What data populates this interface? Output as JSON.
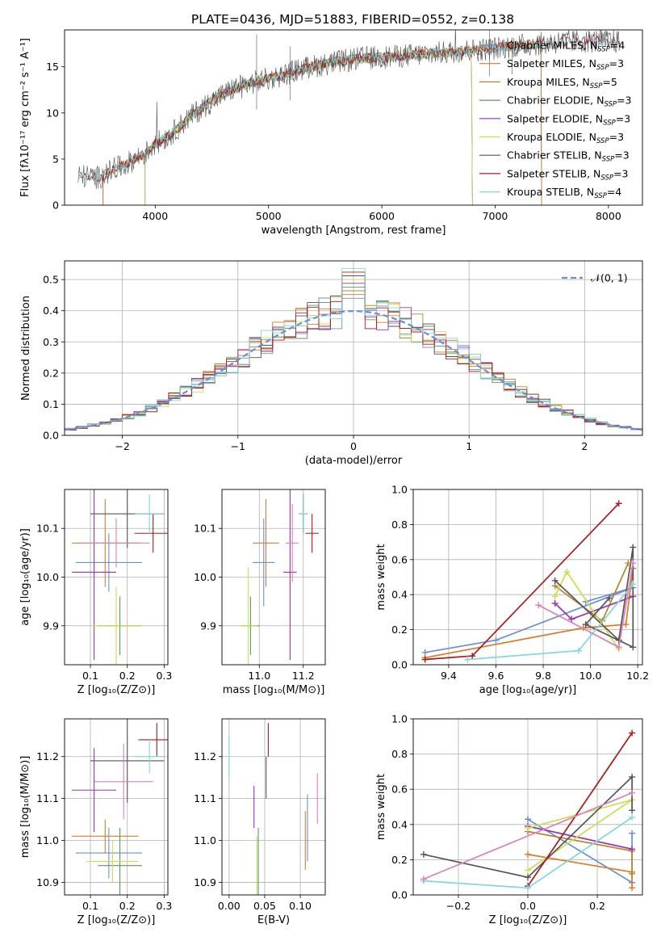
{
  "colors": {
    "chabrier_miles": "#6a8fd8",
    "salpeter_miles": "#e07a28",
    "kroupa_miles": "#b8862c",
    "chabrier_elodie": "#5a9a5a",
    "salpeter_elodie": "#a030b0",
    "kroupa_elodie": "#c8e050",
    "chabrier_stelib": "#555555",
    "salpeter_stelib": "#b01818",
    "kroupa_stelib": "#80d8e0",
    "extra_pink": "#e080b8",
    "grid": "#b0b0b0"
  },
  "chart_data": [
    {
      "id": "spectrum",
      "type": "line",
      "title": "PLATE=0436, MJD=51883, FIBERID=0552, z=0.138",
      "xlabel": "wavelength [Angstrom, rest frame]",
      "ylabel": "Flux [fλ10⁻¹⁷ erg cm⁻² s⁻¹ A⁻¹]",
      "xlim": [
        3200,
        8300
      ],
      "ylim": [
        0,
        19
      ],
      "xticks": [
        4000,
        5000,
        6000,
        7000,
        8000
      ],
      "yticks": [
        0,
        5,
        10,
        15
      ],
      "grid": false,
      "legend_position": "top-right",
      "legend": [
        "Chabrier MILES, N_SSP=4",
        "Salpeter MILES, N_SSP=3",
        "Kroupa MILES, N_SSP=5",
        "Chabrier ELODIE, N_SSP=3",
        "Salpeter ELODIE, N_SSP=3",
        "Kroupa ELODIE, N_SSP=3",
        "Chabrier STELIB, N_SSP=3",
        "Salpeter STELIB, N_SSP=3",
        "Kroupa STELIB, N_SSP=4"
      ],
      "continuum": [
        [
          3320,
          3.2
        ],
        [
          3500,
          3.0
        ],
        [
          3700,
          4.2
        ],
        [
          3900,
          5.5
        ],
        [
          4000,
          6.6
        ],
        [
          4150,
          7.8
        ],
        [
          4300,
          9.5
        ],
        [
          4500,
          11.3
        ],
        [
          4700,
          12.7
        ],
        [
          4900,
          13.4
        ],
        [
          5100,
          14.0
        ],
        [
          5300,
          14.8
        ],
        [
          5500,
          15.3
        ],
        [
          5800,
          15.9
        ],
        [
          6100,
          16.1
        ],
        [
          6400,
          16.4
        ],
        [
          6700,
          16.7
        ],
        [
          7000,
          17.0
        ],
        [
          7300,
          17.4
        ],
        [
          7600,
          17.7
        ],
        [
          7900,
          17.8
        ],
        [
          8100,
          17.7
        ]
      ]
    },
    {
      "id": "residuals",
      "type": "step",
      "xlabel": "(data-model)/error",
      "ylabel": "Normed distribution",
      "xlim": [
        -2.5,
        2.5
      ],
      "ylim": [
        0,
        0.56
      ],
      "xticks": [
        -2,
        -1,
        0,
        1,
        2
      ],
      "yticks": [
        0.0,
        0.1,
        0.2,
        0.3,
        0.4,
        0.5
      ],
      "grid": true,
      "legend_position": "top-right",
      "legend": [
        "𝒩(0, 1)"
      ],
      "bin_width": 0.1
    },
    {
      "id": "age_vs_z",
      "type": "errorbar",
      "xlabel": "Z [log₁₀(Z/Z⊙)]",
      "ylabel": "age  [log₁₀(age/yr)]",
      "xlim": [
        0.03,
        0.31
      ],
      "ylim": [
        9.82,
        10.18
      ],
      "xticks": [
        0.1,
        0.2,
        0.3
      ],
      "yticks": [
        9.9,
        10.0,
        10.1
      ],
      "grid": true,
      "points": [
        {
          "c": "chabrier_miles",
          "x": 0.15,
          "y": 10.03,
          "xerr": 0.09,
          "yerr": 0.06
        },
        {
          "c": "salpeter_miles",
          "x": 0.14,
          "y": 10.07,
          "xerr": 0.09,
          "yerr": 0.09
        },
        {
          "c": "chabrier_elodie",
          "x": 0.18,
          "y": 9.9,
          "xerr": 0.06,
          "yerr": 0.06
        },
        {
          "c": "salpeter_elodie",
          "x": 0.11,
          "y": 10.01,
          "xerr": 0.06,
          "yerr": 0.18
        },
        {
          "c": "kroupa_elodie",
          "x": 0.17,
          "y": 9.9,
          "xerr": 0.07,
          "yerr": 0.08
        },
        {
          "c": "chabrier_stelib",
          "x": 0.2,
          "y": 10.13,
          "xerr": 0.1,
          "yerr": 0.07
        },
        {
          "c": "salpeter_stelib",
          "x": 0.27,
          "y": 10.09,
          "xerr": 0.05,
          "yerr": 0.04
        },
        {
          "c": "kroupa_stelib",
          "x": 0.26,
          "y": 10.13,
          "xerr": 0.04,
          "yerr": 0.04
        },
        {
          "c": "extra_pink",
          "x": 0.17,
          "y": 10.07,
          "xerr": 0.09,
          "yerr": 0.05
        }
      ]
    },
    {
      "id": "age_vs_mass",
      "type": "errorbar",
      "xlabel": "mass [log₁₀(M/M⊙)]",
      "ylabel": "",
      "xlim": [
        10.83,
        11.3
      ],
      "ylim": [
        9.82,
        10.18
      ],
      "xticks": [
        11.0,
        11.2
      ],
      "yticks": [
        9.9,
        10.0,
        10.1
      ],
      "grid": true,
      "points": [
        {
          "c": "chabrier_miles",
          "x": 11.02,
          "y": 10.03,
          "xerr": 0.05,
          "yerr": 0.09
        },
        {
          "c": "salpeter_miles",
          "x": 11.03,
          "y": 10.07,
          "xerr": 0.06,
          "yerr": 0.09
        },
        {
          "c": "chabrier_elodie",
          "x": 10.96,
          "y": 9.9,
          "xerr": 0.04,
          "yerr": 0.06
        },
        {
          "c": "salpeter_elodie",
          "x": 11.14,
          "y": 10.01,
          "xerr": 0.03,
          "yerr": 0.18
        },
        {
          "c": "kroupa_elodie",
          "x": 10.95,
          "y": 9.9,
          "xerr": 0.04,
          "yerr": 0.12
        },
        {
          "c": "chabrier_stelib",
          "x": 11.2,
          "y": 10.13,
          "xerr": 0.02,
          "yerr": 0.04
        },
        {
          "c": "salpeter_stelib",
          "x": 11.24,
          "y": 10.09,
          "xerr": 0.03,
          "yerr": 0.04
        },
        {
          "c": "kroupa_stelib",
          "x": 11.2,
          "y": 10.13,
          "xerr": 0.02,
          "yerr": 0.04
        },
        {
          "c": "extra_pink",
          "x": 11.15,
          "y": 10.07,
          "xerr": 0.03,
          "yerr": 0.08
        }
      ]
    },
    {
      "id": "weight_vs_age",
      "type": "line",
      "xlabel": "age  [log₁₀(age/yr)]",
      "ylabel": "mass weight",
      "xlim": [
        9.25,
        10.22
      ],
      "ylim": [
        0,
        1.0
      ],
      "xticks": [
        9.4,
        9.6,
        9.8,
        10.0,
        10.2
      ],
      "yticks": [
        0.0,
        0.2,
        0.4,
        0.6,
        0.8,
        1.0
      ],
      "grid": true,
      "series": [
        {
          "c": "chabrier_miles",
          "points": [
            [
              9.3,
              0.07
            ],
            [
              9.6,
              0.14
            ],
            [
              10.18,
              0.44
            ],
            [
              9.98,
              0.36
            ]
          ]
        },
        {
          "c": "salpeter_miles",
          "points": [
            [
              9.3,
              0.04
            ],
            [
              9.97,
              0.21
            ],
            [
              10.15,
              0.23
            ],
            [
              10.18,
              0.55
            ]
          ]
        },
        {
          "c": "kroupa_miles",
          "points": [
            [
              9.85,
              0.45
            ],
            [
              10.05,
              0.25
            ],
            [
              10.16,
              0.58
            ]
          ]
        },
        {
          "c": "salpeter_elodie",
          "points": [
            [
              9.85,
              0.35
            ],
            [
              9.92,
              0.26
            ],
            [
              10.18,
              0.39
            ]
          ]
        },
        {
          "c": "kroupa_elodie",
          "points": [
            [
              9.85,
              0.39
            ],
            [
              9.9,
              0.53
            ],
            [
              10.12,
              0.09
            ]
          ]
        },
        {
          "c": "chabrier_stelib",
          "points": [
            [
              9.85,
              0.48
            ],
            [
              10.12,
              0.14
            ],
            [
              10.18,
              0.67
            ],
            [
              10.18,
              0.1
            ],
            [
              9.98,
              0.23
            ],
            [
              10.08,
              0.38
            ]
          ]
        },
        {
          "c": "salpeter_stelib",
          "points": [
            [
              9.3,
              0.03
            ],
            [
              9.5,
              0.05
            ],
            [
              10.12,
              0.92
            ]
          ]
        },
        {
          "c": "kroupa_stelib",
          "points": [
            [
              9.48,
              0.03
            ],
            [
              9.95,
              0.08
            ],
            [
              10.18,
              0.46
            ]
          ]
        },
        {
          "c": "extra_pink",
          "points": [
            [
              9.78,
              0.34
            ],
            [
              10.12,
              0.1
            ],
            [
              10.18,
              0.58
            ]
          ]
        }
      ]
    },
    {
      "id": "mass_vs_z",
      "type": "errorbar",
      "xlabel": "Z [log₁₀(Z/Z⊙)]",
      "ylabel": "mass [log₁₀(M/M⊙)]",
      "xlim": [
        0.03,
        0.31
      ],
      "ylim": [
        10.87,
        11.29
      ],
      "xticks": [
        0.1,
        0.2,
        0.3
      ],
      "yticks": [
        10.9,
        11.0,
        11.1,
        11.2
      ],
      "grid": true,
      "points": [
        {
          "c": "chabrier_miles",
          "x": 0.15,
          "y": 10.97,
          "xerr": 0.09,
          "yerr": 0.06
        },
        {
          "c": "salpeter_miles",
          "x": 0.14,
          "y": 11.01,
          "xerr": 0.09,
          "yerr": 0.04
        },
        {
          "c": "chabrier_elodie",
          "x": 0.18,
          "y": 10.94,
          "xerr": 0.06,
          "yerr": 0.09
        },
        {
          "c": "salpeter_elodie",
          "x": 0.11,
          "y": 11.12,
          "xerr": 0.06,
          "yerr": 0.1
        },
        {
          "c": "kroupa_elodie",
          "x": 0.16,
          "y": 10.95,
          "xerr": 0.07,
          "yerr": 0.05
        },
        {
          "c": "chabrier_stelib",
          "x": 0.2,
          "y": 11.19,
          "xerr": 0.1,
          "yerr": 0.1
        },
        {
          "c": "salpeter_stelib",
          "x": 0.28,
          "y": 11.24,
          "xerr": 0.05,
          "yerr": 0.04
        },
        {
          "c": "kroupa_stelib",
          "x": 0.26,
          "y": 11.2,
          "xerr": 0.04,
          "yerr": 0.04
        },
        {
          "c": "extra_pink",
          "x": 0.19,
          "y": 11.14,
          "xerr": 0.08,
          "yerr": 0.09
        }
      ]
    },
    {
      "id": "mass_vs_ebv",
      "type": "errorbar",
      "xlabel": "E(B-V)",
      "ylabel": "",
      "xlim": [
        -0.01,
        0.135
      ],
      "ylim": [
        10.87,
        11.29
      ],
      "xticks": [
        0.0,
        0.05,
        0.1
      ],
      "xticklabels": [
        "0.00",
        "0.05",
        "0.10"
      ],
      "yticks": [
        10.9,
        11.0,
        11.1,
        11.2
      ],
      "grid": true,
      "points": [
        {
          "c": "chabrier_miles",
          "x": 0.11,
          "y": 11.03,
          "xerr": 0,
          "yerr": 0.08
        },
        {
          "c": "salpeter_miles",
          "x": 0.107,
          "y": 11.0,
          "xerr": 0,
          "yerr": 0.07
        },
        {
          "c": "chabrier_elodie",
          "x": 0.041,
          "y": 10.94,
          "xerr": 0,
          "yerr": 0.09
        },
        {
          "c": "salpeter_elodie",
          "x": 0.035,
          "y": 11.08,
          "xerr": 0,
          "yerr": 0.05
        },
        {
          "c": "kroupa_elodie",
          "x": 0.039,
          "y": 10.94,
          "xerr": 0,
          "yerr": 0.07
        },
        {
          "c": "chabrier_stelib",
          "x": 0.052,
          "y": 11.15,
          "xerr": 0,
          "yerr": 0.05
        },
        {
          "c": "salpeter_stelib",
          "x": 0.055,
          "y": 11.24,
          "xerr": 0,
          "yerr": 0.04
        },
        {
          "c": "kroupa_stelib",
          "x": 0.0,
          "y": 11.2,
          "xerr": 0,
          "yerr": 0.05
        },
        {
          "c": "extra_pink",
          "x": 0.124,
          "y": 11.1,
          "xerr": 0,
          "yerr": 0.06
        }
      ]
    },
    {
      "id": "weight_vs_z",
      "type": "line",
      "xlabel": "Z [log₁₀(Z/Z⊙)]",
      "ylabel": "mass weight",
      "xlim": [
        -0.33,
        0.33
      ],
      "ylim": [
        0,
        1.0
      ],
      "xticks": [
        -0.2,
        0.0,
        0.2
      ],
      "yticks": [
        0.0,
        0.2,
        0.4,
        0.6,
        0.8,
        1.0
      ],
      "grid": true,
      "series": [
        {
          "c": "chabrier_miles",
          "points": [
            [
              0.0,
              0.43
            ],
            [
              0.3,
              0.07
            ],
            [
              0.3,
              0.35
            ]
          ]
        },
        {
          "c": "salpeter_miles",
          "points": [
            [
              0.0,
              0.23
            ],
            [
              0.3,
              0.13
            ],
            [
              0.3,
              0.04
            ]
          ]
        },
        {
          "c": "kroupa_miles",
          "points": [
            [
              0.0,
              0.36
            ],
            [
              0.3,
              0.25
            ],
            [
              0.3,
              0.12
            ]
          ]
        },
        {
          "c": "salpeter_elodie",
          "points": [
            [
              0.0,
              0.39
            ],
            [
              0.3,
              0.26
            ]
          ]
        },
        {
          "c": "kroupa_elodie",
          "points": [
            [
              0.0,
              0.14
            ],
            [
              0.3,
              0.54
            ],
            [
              0.0,
              0.38
            ]
          ]
        },
        {
          "c": "chabrier_stelib",
          "points": [
            [
              -0.3,
              0.23
            ],
            [
              0.0,
              0.1
            ],
            [
              0.3,
              0.67
            ],
            [
              0.3,
              0.48
            ]
          ]
        },
        {
          "c": "salpeter_stelib",
          "points": [
            [
              0.0,
              0.05
            ],
            [
              0.3,
              0.92
            ]
          ]
        },
        {
          "c": "kroupa_stelib",
          "points": [
            [
              -0.3,
              0.08
            ],
            [
              0.0,
              0.04
            ],
            [
              0.3,
              0.44
            ]
          ]
        },
        {
          "c": "extra_pink",
          "points": [
            [
              -0.3,
              0.09
            ],
            [
              0.3,
              0.58
            ]
          ]
        }
      ]
    }
  ]
}
